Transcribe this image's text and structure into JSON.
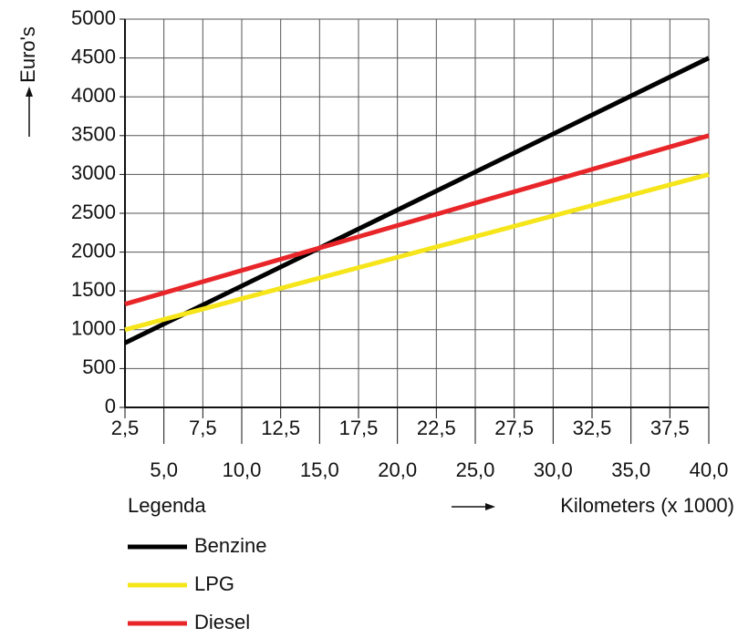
{
  "chart_data": {
    "type": "line",
    "y_label": "Euro's",
    "x_label": "Kilometers (x 1000)",
    "legend_title": "Legenda",
    "x": [
      2.5,
      40
    ],
    "series": [
      {
        "name": "Benzine",
        "color": "#000000",
        "values": [
          830,
          4500
        ]
      },
      {
        "name": "LPG",
        "color": "#f5e51a",
        "values": [
          1000,
          3000
        ]
      },
      {
        "name": "Diesel",
        "color": "#e8262a",
        "values": [
          1330,
          3500
        ]
      }
    ],
    "xlim": [
      2.5,
      40
    ],
    "xticks": [
      {
        "value": 2.5,
        "label": "2,5"
      },
      {
        "value": 5,
        "label": "5,0"
      },
      {
        "value": 7.5,
        "label": "7,5"
      },
      {
        "value": 10,
        "label": "10,0"
      },
      {
        "value": 12.5,
        "label": "12,5"
      },
      {
        "value": 15,
        "label": "15,0"
      },
      {
        "value": 17.5,
        "label": "17,5"
      },
      {
        "value": 20,
        "label": "20,0"
      },
      {
        "value": 22.5,
        "label": "22,5"
      },
      {
        "value": 25,
        "label": "25,0"
      },
      {
        "value": 27.5,
        "label": "27,5"
      },
      {
        "value": 30,
        "label": "30,0"
      },
      {
        "value": 32.5,
        "label": "32,5"
      },
      {
        "value": 35,
        "label": "35,0"
      },
      {
        "value": 37.5,
        "label": "37,5"
      },
      {
        "value": 40,
        "label": "40,0"
      }
    ],
    "ylim": [
      0,
      5000
    ],
    "yticks": [
      0,
      500,
      1000,
      1500,
      2000,
      2500,
      3000,
      3500,
      4000,
      4500,
      5000
    ],
    "grid": true
  }
}
